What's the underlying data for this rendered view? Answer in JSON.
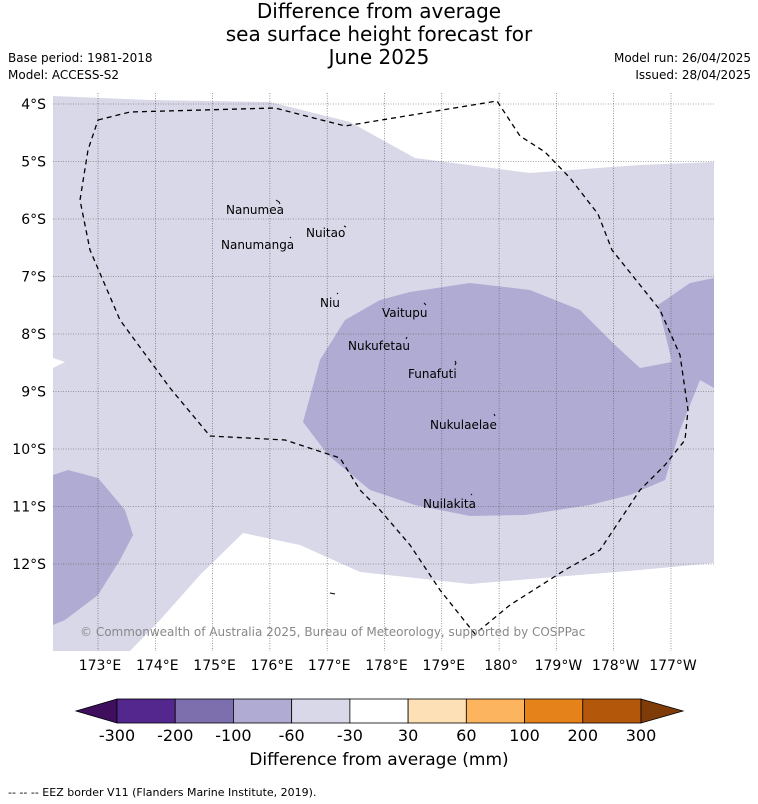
{
  "header": {
    "title_lines": [
      "Difference from average",
      "sea surface height forecast for",
      "June 2025"
    ],
    "base_period": "Base period: 1981-2018",
    "model": "Model: ACCESS-S2",
    "model_run": "Model run: 26/04/2025",
    "issued": "Issued: 28/04/2025"
  },
  "map": {
    "lat_labels": [
      "4°S",
      "5°S",
      "6°S",
      "7°S",
      "8°S",
      "9°S",
      "10°S",
      "11°S",
      "12°S"
    ],
    "lon_labels": [
      "173°E",
      "174°E",
      "175°E",
      "176°E",
      "177°E",
      "178°E",
      "179°E",
      "180°",
      "179°W",
      "178°W",
      "177°W"
    ],
    "islands": [
      "Nanumea",
      "Nuitao",
      "Nanumanga",
      "Niu",
      "Vaitupu",
      "Nukufetau",
      "Funafuti",
      "Nukulaelae",
      "Nuilakita"
    ],
    "copyright": "© Commonwealth of Australia 2025, Bureau of Meteorology, supported by COSPPac",
    "fill_colors": {
      "light_negative": "#d8d8e9",
      "moderate_negative": "#b0abd2",
      "no_data": "#ffffff"
    }
  },
  "colorbar": {
    "ticks": [
      "-300",
      "-200",
      "-100",
      "-60",
      "-30",
      "30",
      "60",
      "100",
      "200",
      "300"
    ],
    "colors": [
      "#3f0f5e",
      "#54278f",
      "#7d6fae",
      "#b0abd2",
      "#d8d8e9",
      "#ffffff",
      "#fde0b5",
      "#fdb45e",
      "#e6821a",
      "#b3580a",
      "#7f3b08"
    ],
    "label": "Difference from average (mm)"
  },
  "footer": {
    "eez_note": "-- -- -- EEZ border V11 (Flanders Marine Institute, 2019)."
  }
}
